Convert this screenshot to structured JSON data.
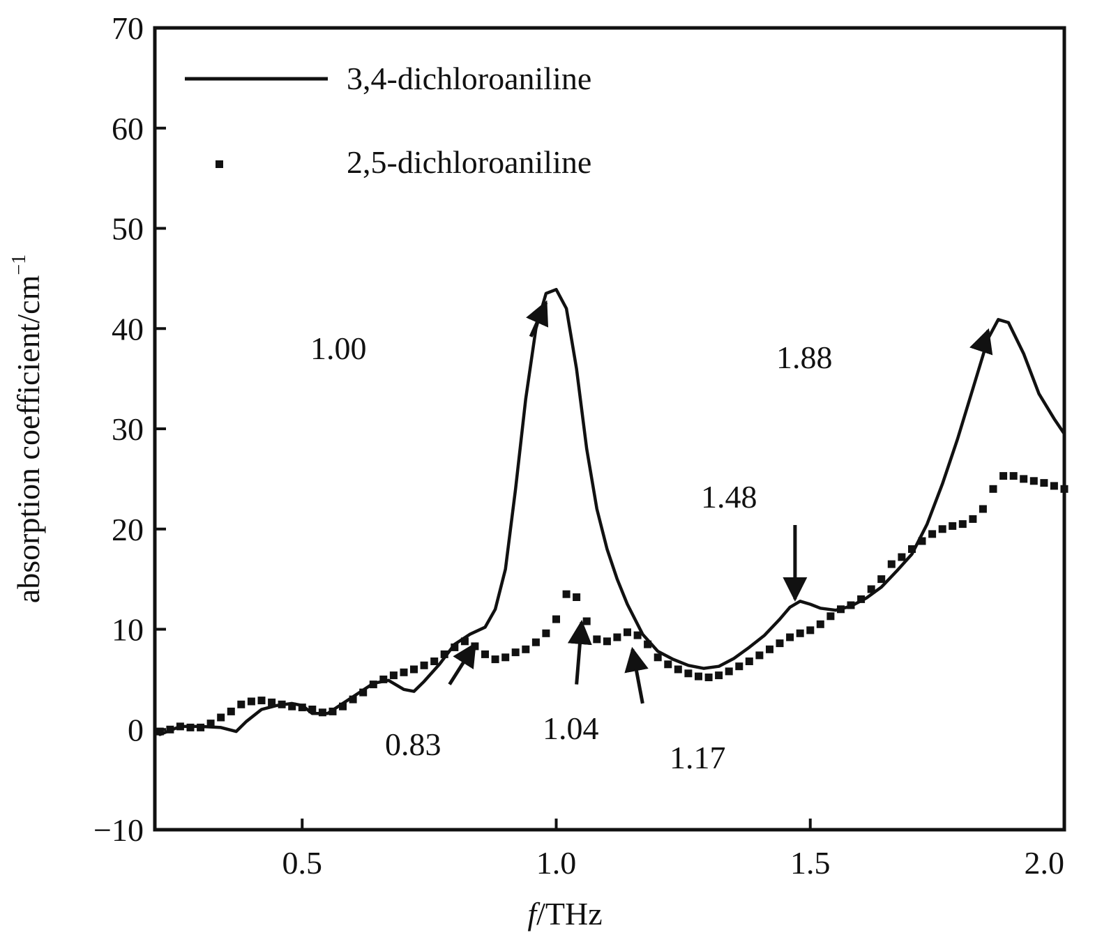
{
  "chart_data": {
    "type": "line",
    "title": "",
    "xlabel_italic": "f",
    "xlabel_rest": "/THz",
    "ylabel": "absorption coefficient/cm",
    "ylabel_sup": "−1",
    "xlim": [
      0.21,
      2.0
    ],
    "ylim": [
      -10,
      70
    ],
    "x_ticks": [
      {
        "value": 0.5,
        "label": "0.5"
      },
      {
        "value": 1.0,
        "label": "1.0"
      },
      {
        "value": 1.5,
        "label": "1.5"
      },
      {
        "value": 2.0,
        "label": "2.0"
      }
    ],
    "y_ticks": [
      {
        "value": -10,
        "label": "−10"
      },
      {
        "value": 0,
        "label": "0"
      },
      {
        "value": 10,
        "label": "10"
      },
      {
        "value": 20,
        "label": "20"
      },
      {
        "value": 30,
        "label": "30"
      },
      {
        "value": 40,
        "label": "40"
      },
      {
        "value": 50,
        "label": "50"
      },
      {
        "value": 60,
        "label": "60"
      },
      {
        "value": 70,
        "label": "70"
      }
    ],
    "legend_position": "top-left",
    "grid": false,
    "series": [
      {
        "name": "3,4-dichloroaniline",
        "style": "solid-line",
        "color": "#111111",
        "x": [
          0.22,
          0.26,
          0.3,
          0.34,
          0.37,
          0.39,
          0.42,
          0.45,
          0.48,
          0.5,
          0.52,
          0.55,
          0.58,
          0.61,
          0.64,
          0.67,
          0.7,
          0.72,
          0.74,
          0.77,
          0.8,
          0.83,
          0.86,
          0.88,
          0.9,
          0.92,
          0.94,
          0.96,
          0.98,
          1.0,
          1.02,
          1.04,
          1.06,
          1.08,
          1.1,
          1.12,
          1.14,
          1.17,
          1.2,
          1.23,
          1.26,
          1.29,
          1.32,
          1.35,
          1.38,
          1.41,
          1.44,
          1.46,
          1.48,
          1.5,
          1.52,
          1.55,
          1.58,
          1.61,
          1.64,
          1.67,
          1.7,
          1.73,
          1.76,
          1.79,
          1.82,
          1.85,
          1.87,
          1.89,
          1.92,
          1.95,
          1.98,
          2.0
        ],
        "y": [
          -0.5,
          0.3,
          0.3,
          0.2,
          -0.2,
          0.8,
          2.0,
          2.4,
          2.6,
          2.4,
          1.6,
          1.6,
          2.6,
          3.6,
          4.6,
          4.9,
          4.0,
          3.8,
          4.8,
          6.5,
          8.5,
          9.5,
          10.2,
          12.0,
          16.0,
          24.0,
          33.0,
          40.0,
          43.5,
          43.9,
          42.0,
          36.0,
          28.0,
          22.0,
          18.0,
          15.0,
          12.5,
          9.5,
          7.8,
          7.0,
          6.4,
          6.1,
          6.3,
          7.1,
          8.2,
          9.4,
          11.0,
          12.2,
          12.8,
          12.5,
          12.1,
          11.9,
          12.3,
          13.1,
          14.2,
          15.8,
          17.5,
          20.5,
          24.5,
          29.0,
          34.0,
          39.0,
          40.9,
          40.6,
          37.5,
          33.5,
          31.0,
          29.5
        ]
      },
      {
        "name": "2,5-dichloroaniline",
        "style": "square-markers",
        "color": "#111111",
        "x": [
          0.22,
          0.24,
          0.26,
          0.28,
          0.3,
          0.32,
          0.34,
          0.36,
          0.38,
          0.4,
          0.42,
          0.44,
          0.46,
          0.48,
          0.5,
          0.52,
          0.54,
          0.56,
          0.58,
          0.6,
          0.62,
          0.64,
          0.66,
          0.68,
          0.7,
          0.72,
          0.74,
          0.76,
          0.78,
          0.8,
          0.82,
          0.84,
          0.86,
          0.88,
          0.9,
          0.92,
          0.94,
          0.96,
          0.98,
          1.0,
          1.02,
          1.04,
          1.06,
          1.08,
          1.1,
          1.12,
          1.14,
          1.16,
          1.18,
          1.2,
          1.22,
          1.24,
          1.26,
          1.28,
          1.3,
          1.32,
          1.34,
          1.36,
          1.38,
          1.4,
          1.42,
          1.44,
          1.46,
          1.48,
          1.5,
          1.52,
          1.54,
          1.56,
          1.58,
          1.6,
          1.62,
          1.64,
          1.66,
          1.68,
          1.7,
          1.72,
          1.74,
          1.76,
          1.78,
          1.8,
          1.82,
          1.84,
          1.86,
          1.88,
          1.9,
          1.92,
          1.94,
          1.96,
          1.98,
          2.0
        ],
        "y": [
          -0.2,
          0.0,
          0.3,
          0.2,
          0.2,
          0.6,
          1.2,
          1.8,
          2.5,
          2.8,
          2.9,
          2.7,
          2.5,
          2.3,
          2.2,
          2.0,
          1.7,
          1.8,
          2.3,
          3.0,
          3.7,
          4.5,
          5.0,
          5.4,
          5.7,
          6.0,
          6.4,
          6.8,
          7.5,
          8.2,
          8.8,
          8.3,
          7.5,
          7.0,
          7.2,
          7.7,
          8.0,
          8.7,
          9.6,
          11.0,
          13.5,
          13.2,
          10.8,
          9.0,
          8.8,
          9.2,
          9.7,
          9.4,
          8.5,
          7.2,
          6.5,
          6.0,
          5.6,
          5.3,
          5.2,
          5.4,
          5.8,
          6.3,
          6.8,
          7.4,
          8.0,
          8.6,
          9.2,
          9.6,
          9.9,
          10.5,
          11.3,
          12.0,
          12.4,
          13.0,
          14.0,
          15.0,
          16.5,
          17.2,
          18.0,
          18.8,
          19.5,
          20.0,
          20.3,
          20.5,
          21.0,
          22.0,
          24.0,
          25.3,
          25.3,
          25.0,
          24.8,
          24.6,
          24.3,
          24.0
        ]
      }
    ],
    "annotations": [
      {
        "label": "1.00",
        "target_x": 0.98,
        "target_y": 42.6,
        "text_x": 0.95,
        "text_y": 39.2
      },
      {
        "label": "1.88",
        "target_x": 1.85,
        "target_y": 39.8,
        "text_x": 1.84,
        "text_y": 38.3
      },
      {
        "label": "1.48",
        "target_x": 1.47,
        "target_y": 13.0,
        "text_x": 1.47,
        "text_y": 20.4
      },
      {
        "label": "0.83",
        "target_x": 0.84,
        "target_y": 8.5,
        "text_x": 0.79,
        "text_y": 4.5
      },
      {
        "label": "1.04",
        "target_x": 1.05,
        "target_y": 10.7,
        "text_x": 1.04,
        "text_y": 4.5
      },
      {
        "label": "1.17",
        "target_x": 1.15,
        "target_y": 8.0,
        "text_x": 1.17,
        "text_y": 2.6
      }
    ]
  }
}
